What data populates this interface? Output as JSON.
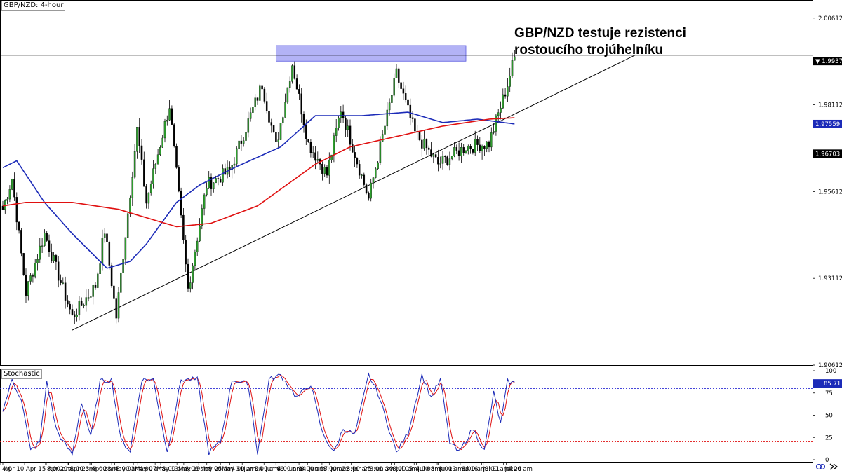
{
  "chart": {
    "symbol_label": "GBP/NZD: 4-hour",
    "headline_line1": "GBP/NZD testuje rezistenci",
    "headline_line2": "rostoucího trojúhelníku",
    "indicator_label": "Stochastic"
  },
  "colors": {
    "bull_candle": "#2e9e2e",
    "bear_candle": "#000000",
    "ma_fast": "#1c2bb8",
    "ma_slow": "#e01010",
    "resistance_zone": "#8080f0",
    "stoch_main": "#1c2bb8",
    "stoch_signal": "#e01010",
    "overbought_line": "#2b2bd4",
    "oversold_line": "#e01010"
  },
  "chart_data": {
    "type": "candlestick",
    "instrument": "GBP/NZD",
    "timeframe": "4-hour",
    "price_axis": {
      "ticks": [
        "2.00612",
        "1.98112",
        "1.95612",
        "1.93112",
        "1.90612"
      ],
      "ylim": [
        1.90612,
        2.01112
      ]
    },
    "price_labels": [
      {
        "text": "1.99373",
        "value": 1.99373,
        "bg": "#000000",
        "fg": "#ffffff",
        "marker": "▼"
      },
      {
        "text": "1.97559",
        "value": 1.97559,
        "bg": "#1c2bb8",
        "fg": "#ffffff"
      },
      {
        "text": "1.96703",
        "value": 1.96703,
        "bg": "#000000",
        "fg": "#ffffff"
      }
    ],
    "horizontal_level": 1.9954,
    "resistance_zone": {
      "low": 1.9937,
      "high": 1.9982,
      "from_index": 118,
      "to_index": 200
    },
    "trendline": {
      "start": {
        "index": 30,
        "price": 1.9162
      },
      "end": {
        "index": 273,
        "price": 1.9954
      }
    },
    "time_axis": [
      "Apr 10",
      "Apr 15",
      "Apr 20",
      "Apr 23",
      "Apr 28",
      "May 03",
      "May 07",
      "May 13",
      "May 19",
      "May 25",
      "May 31",
      "Jun 04",
      "Jun 09",
      "Jun 14",
      "Jun 17",
      "Jun 22",
      "Jun 25",
      "Jun 30",
      "Jul 05",
      "Jul 08",
      "Jul 13",
      "Jul 16",
      "Jul 21",
      "Jul 26"
    ],
    "time_axis_secondary": [
      "4:0",
      "8:00 am",
      "8:00 am",
      "8:00 am",
      "8:00 am",
      "4:00 am",
      "8:00 am",
      "8:00 am",
      "8:00 am",
      "4:00 am",
      "8:00 am",
      "4:00 am",
      "8:00 am",
      "8:00 am",
      "8:00 am",
      "8:00 am",
      "8:00 am",
      "4:00 am",
      "8:00 am",
      "8:00 am",
      "8:00 am",
      "4:00 am"
    ],
    "close_anchors": [
      [
        0,
        1.951
      ],
      [
        4,
        1.96
      ],
      [
        10,
        1.927
      ],
      [
        18,
        1.944
      ],
      [
        30,
        1.92
      ],
      [
        40,
        1.929
      ],
      [
        44,
        1.945
      ],
      [
        49,
        1.92
      ],
      [
        58,
        1.974
      ],
      [
        62,
        1.953
      ],
      [
        72,
        1.981
      ],
      [
        80,
        1.928
      ],
      [
        88,
        1.958
      ],
      [
        98,
        1.962
      ],
      [
        112,
        1.987
      ],
      [
        118,
        1.969
      ],
      [
        125,
        1.993
      ],
      [
        132,
        1.97
      ],
      [
        140,
        1.961
      ],
      [
        146,
        1.98
      ],
      [
        158,
        1.954
      ],
      [
        170,
        1.99
      ],
      [
        178,
        1.973
      ],
      [
        188,
        1.964
      ],
      [
        200,
        1.969
      ],
      [
        210,
        1.97
      ],
      [
        218,
        1.987
      ],
      [
        221,
        1.995
      ]
    ],
    "moving_averages": [
      {
        "name": "fast MA",
        "color": "#1c2bb8",
        "anchors": [
          [
            0,
            1.963
          ],
          [
            6,
            1.965
          ],
          [
            18,
            1.953
          ],
          [
            30,
            1.944
          ],
          [
            45,
            1.934
          ],
          [
            55,
            1.936
          ],
          [
            62,
            1.941
          ],
          [
            75,
            1.953
          ],
          [
            85,
            1.958
          ],
          [
            100,
            1.963
          ],
          [
            120,
            1.969
          ],
          [
            135,
            1.978
          ],
          [
            155,
            1.978
          ],
          [
            175,
            1.979
          ],
          [
            190,
            1.976
          ],
          [
            205,
            1.977
          ],
          [
            221,
            1.9756
          ]
        ]
      },
      {
        "name": "slow MA",
        "color": "#e01010",
        "anchors": [
          [
            0,
            1.952
          ],
          [
            10,
            1.953
          ],
          [
            30,
            1.953
          ],
          [
            50,
            1.951
          ],
          [
            60,
            1.949
          ],
          [
            75,
            1.946
          ],
          [
            90,
            1.947
          ],
          [
            110,
            1.952
          ],
          [
            135,
            1.964
          ],
          [
            150,
            1.969
          ],
          [
            170,
            1.972
          ],
          [
            190,
            1.975
          ],
          [
            210,
            1.977
          ],
          [
            221,
            1.9774
          ]
        ]
      }
    ],
    "stochastic": {
      "ylim": [
        0,
        100
      ],
      "ticks": [
        "100",
        "75",
        "50",
        "25",
        "0"
      ],
      "levels": [
        80,
        20
      ],
      "last_value": "85.71",
      "anchors": [
        [
          0,
          55
        ],
        [
          4,
          90
        ],
        [
          8,
          68
        ],
        [
          12,
          10
        ],
        [
          16,
          20
        ],
        [
          19,
          88
        ],
        [
          23,
          35
        ],
        [
          26,
          20
        ],
        [
          30,
          6
        ],
        [
          34,
          65
        ],
        [
          38,
          25
        ],
        [
          42,
          88
        ],
        [
          47,
          90
        ],
        [
          51,
          22
        ],
        [
          55,
          10
        ],
        [
          60,
          90
        ],
        [
          65,
          90
        ],
        [
          71,
          8
        ],
        [
          77,
          90
        ],
        [
          84,
          90
        ],
        [
          89,
          8
        ],
        [
          94,
          20
        ],
        [
          99,
          90
        ],
        [
          106,
          85
        ],
        [
          110,
          8
        ],
        [
          115,
          90
        ],
        [
          120,
          95
        ],
        [
          127,
          70
        ],
        [
          133,
          85
        ],
        [
          138,
          30
        ],
        [
          143,
          8
        ],
        [
          147,
          35
        ],
        [
          152,
          28
        ],
        [
          158,
          95
        ],
        [
          162,
          75
        ],
        [
          170,
          8
        ],
        [
          175,
          30
        ],
        [
          181,
          95
        ],
        [
          185,
          70
        ],
        [
          189,
          90
        ],
        [
          193,
          20
        ],
        [
          197,
          8
        ],
        [
          203,
          35
        ],
        [
          208,
          10
        ],
        [
          212,
          75
        ],
        [
          215,
          40
        ],
        [
          218,
          88
        ],
        [
          221,
          86
        ]
      ]
    }
  }
}
